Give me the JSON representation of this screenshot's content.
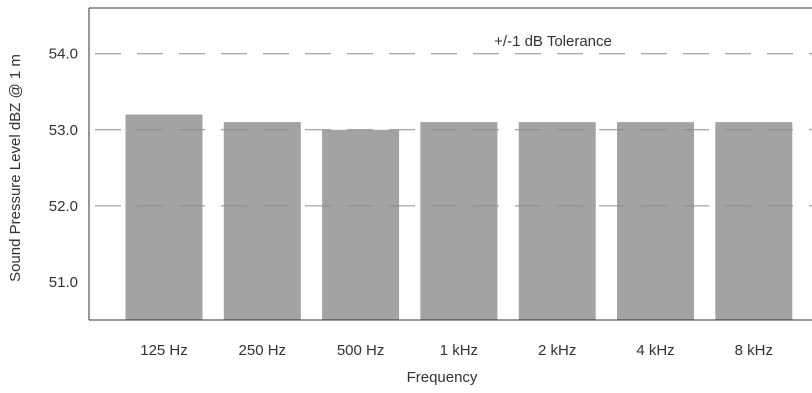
{
  "chart_data": {
    "type": "bar",
    "title": "",
    "xlabel": "Frequency",
    "ylabel": "Sound Pressure Level dBZ @ 1 m",
    "categories": [
      "125 Hz",
      "250 Hz",
      "500 Hz",
      "1 kHz",
      "2 kHz",
      "4 kHz",
      "8 kHz"
    ],
    "values": [
      53.2,
      53.1,
      53.0,
      53.1,
      53.1,
      53.1,
      53.1
    ],
    "ylim": [
      50.5,
      54.6
    ],
    "yticks": [
      51.0,
      52.0,
      53.0,
      54.0
    ],
    "ytick_labels": [
      "51.0",
      "52.0",
      "53.0",
      "54.0"
    ],
    "grid": "dashed horizontal lines at 52.0, 53.0, 54.0",
    "annotation": "+/-1 dB Tolerance",
    "bar_color": "#a3a3a3",
    "grid_color": "#8c8c8c",
    "axis_color": "#333333"
  }
}
